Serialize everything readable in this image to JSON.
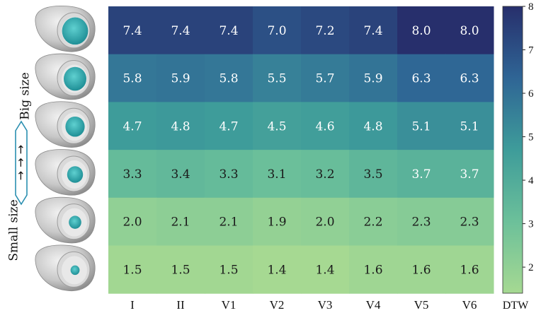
{
  "chart_data": {
    "type": "heatmap",
    "columns": [
      "I",
      "II",
      "V1",
      "V2",
      "V3",
      "V4",
      "V5",
      "V6"
    ],
    "rows": [
      {
        "size_rank": 6,
        "values": [
          7.4,
          7.4,
          7.4,
          7.0,
          7.2,
          7.4,
          8.0,
          8.0
        ]
      },
      {
        "size_rank": 5,
        "values": [
          5.8,
          5.9,
          5.8,
          5.5,
          5.7,
          5.9,
          6.3,
          6.3
        ]
      },
      {
        "size_rank": 4,
        "values": [
          4.7,
          4.8,
          4.7,
          4.5,
          4.6,
          4.8,
          5.1,
          5.1
        ]
      },
      {
        "size_rank": 3,
        "values": [
          3.3,
          3.4,
          3.3,
          3.1,
          3.2,
          3.5,
          3.7,
          3.7
        ]
      },
      {
        "size_rank": 2,
        "values": [
          2.0,
          2.1,
          2.1,
          1.9,
          2.0,
          2.2,
          2.3,
          2.3
        ]
      },
      {
        "size_rank": 1,
        "values": [
          1.5,
          1.5,
          1.5,
          1.4,
          1.4,
          1.6,
          1.6,
          1.6
        ]
      }
    ],
    "colorbar": {
      "label": "DTW",
      "ticks": [
        2,
        3,
        4,
        5,
        6,
        7,
        8
      ],
      "range": [
        1.4,
        8.0
      ]
    },
    "y_annotation": {
      "low": "Small size",
      "high": "Big size",
      "arrows": "→ → →"
    },
    "colors": {
      "low": "#a6d992",
      "mid": "#3e9c9a",
      "high": "#272f6c",
      "scar": "#3fb8b8",
      "heart": "#bdbdbd"
    }
  }
}
